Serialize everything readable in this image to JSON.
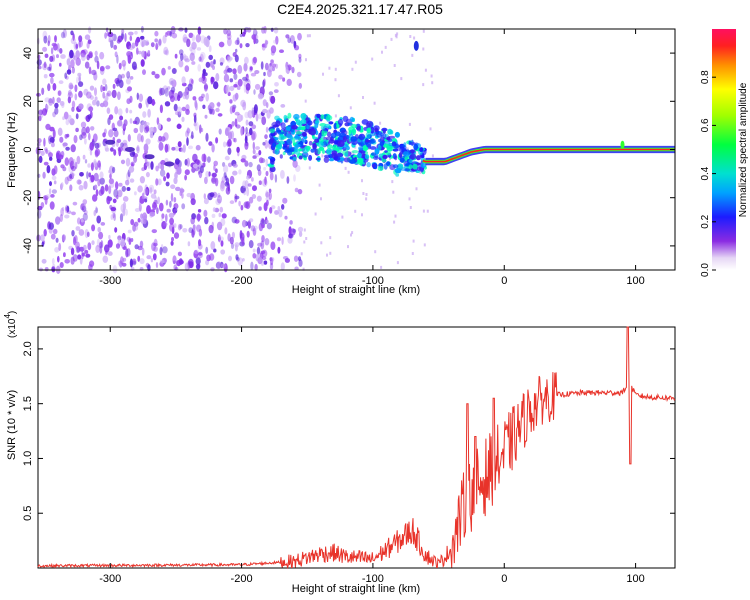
{
  "figure_title": "C2E4.2025.321.17.47.R05",
  "chart_data": [
    {
      "type": "heatmap",
      "title": "C2E4.2025.321.17.47.R05",
      "xlabel": "Height of straight line (km)",
      "ylabel": "Frequency (Hz)",
      "xlim": [
        -355,
        130
      ],
      "ylim": [
        -50,
        50
      ],
      "xticks": [
        -300,
        -200,
        -100,
        0,
        100
      ],
      "yticks": [
        -40,
        -20,
        0,
        20,
        40
      ],
      "colorbar": {
        "label": "Normalized spectral amplitude",
        "range": [
          0,
          1
        ],
        "ticks": [
          0.0,
          0.2,
          0.4,
          0.6,
          0.8
        ],
        "tick_labels": [
          "0.0",
          "0.2",
          "0.4",
          "0.6",
          "0.8"
        ]
      },
      "ridge": {
        "description": "dominant spectral ridge frequency vs height",
        "x": [
          -175,
          -160,
          -140,
          -120,
          -100,
          -80,
          -70,
          -60,
          -45,
          -35,
          -25,
          -15,
          0,
          50,
          90,
          130
        ],
        "y": [
          6,
          5,
          5,
          4,
          2,
          -2,
          -3,
          -5,
          -5,
          -3,
          -1,
          0,
          0,
          0,
          0,
          0
        ]
      },
      "faint_track": {
        "x": [
          -300,
          -285,
          -270,
          -255
        ],
        "y": [
          3,
          0,
          -3,
          -6
        ]
      },
      "artifact": {
        "x": -67,
        "y": 43
      }
    },
    {
      "type": "line",
      "xlabel": "Height of straight line (km)",
      "ylabel": "SNR (10 * v/v)",
      "y_multiplier": "(x10",
      "y_multiplier_exp": "4",
      "y_multiplier_close": ")",
      "xlim": [
        -355,
        130
      ],
      "ylim": [
        0,
        2.2
      ],
      "xticks": [
        -300,
        -200,
        -100,
        0,
        100
      ],
      "yticks": [
        0.5,
        1.0,
        1.5,
        2.0
      ],
      "series": [
        {
          "name": "SNR",
          "color": "#e8332a",
          "x": [
            -355,
            -200,
            -160,
            -140,
            -130,
            -120,
            -100,
            -80,
            -70,
            -60,
            -50,
            -40,
            -30,
            -20,
            -10,
            0,
            10,
            20,
            30,
            40,
            60,
            80,
            90,
            95,
            100,
            110,
            130
          ],
          "y": [
            0.02,
            0.03,
            0.06,
            0.13,
            0.14,
            0.1,
            0.08,
            0.25,
            0.35,
            0.12,
            0.03,
            0.18,
            0.6,
            0.75,
            0.9,
            1.05,
            1.25,
            1.45,
            1.55,
            1.58,
            1.6,
            1.6,
            1.6,
            1.7,
            1.58,
            1.56,
            1.55
          ]
        }
      ],
      "spikes": [
        {
          "x": -28,
          "y": 1.5
        },
        {
          "x": -22,
          "y": 1.2
        },
        {
          "x": -8,
          "y": 1.55
        },
        {
          "x": 94,
          "y": 2.2
        },
        {
          "x": 96,
          "y": 0.95
        }
      ]
    }
  ]
}
